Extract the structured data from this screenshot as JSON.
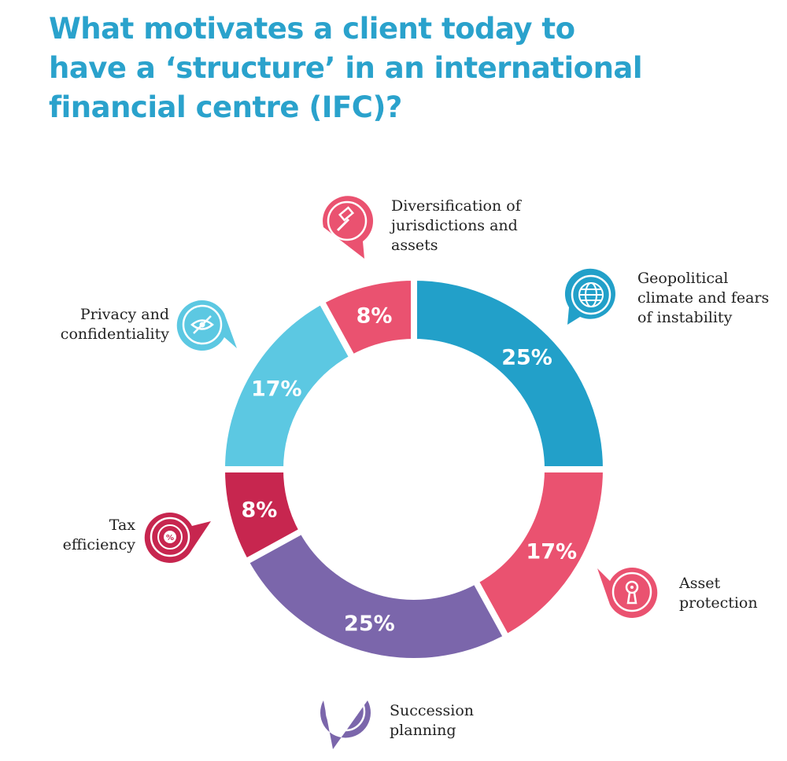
{
  "chart_data": {
    "type": "pie",
    "title": "What motivates a client today to have a ‘structure’ in an international financial centre (IFC)?",
    "slices": [
      {
        "label": "Geopolitical climate and fears of instability",
        "value": 25,
        "display": "25%",
        "color": "#22a0c9",
        "icon": "globe-icon"
      },
      {
        "label": "Asset protection",
        "value": 17,
        "display": "17%",
        "color": "#ea5270",
        "icon": "keyhole-icon"
      },
      {
        "label": "Succession planning",
        "value": 25,
        "display": "25%",
        "color": "#7b66ab",
        "icon": "arrows-icon"
      },
      {
        "label": "Tax efficiency",
        "value": 8,
        "display": "8%",
        "color": "#c7264f",
        "icon": "percent-target-icon"
      },
      {
        "label": "Privacy and confidentiality",
        "value": 17,
        "display": "17%",
        "color": "#5cc8e2",
        "icon": "eye-slash-icon"
      },
      {
        "label": "Diversification of jurisdictions and assets",
        "value": 8,
        "display": "8%",
        "color": "#ea5270",
        "icon": "gavel-icon"
      }
    ]
  }
}
